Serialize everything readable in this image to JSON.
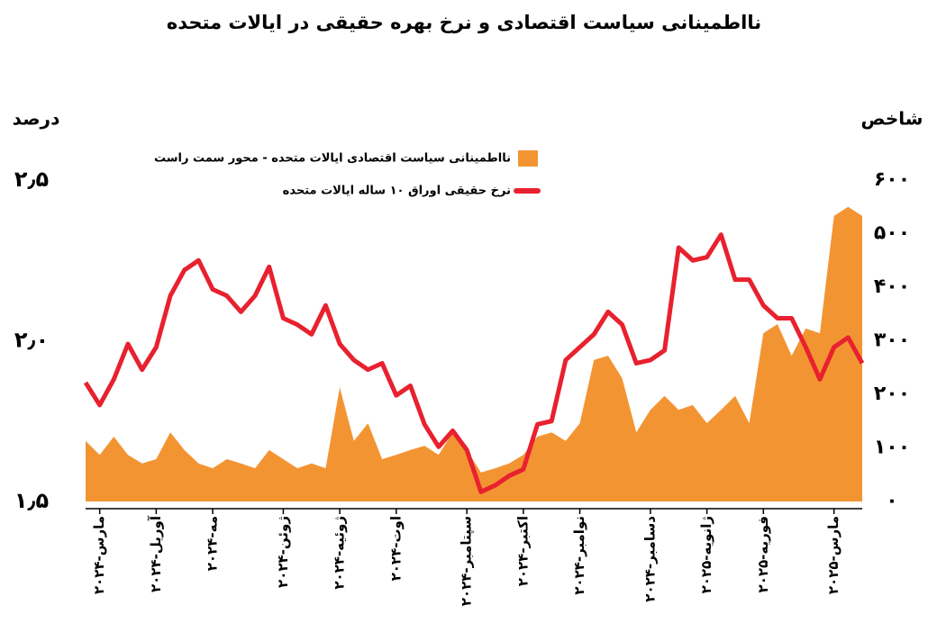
{
  "chart_data": {
    "type": "line",
    "title": "نااطمینانی سیاست اقتصادی و نرخ بهره حقیقی در ایالات متحده",
    "y_label": "درصد",
    "y2_label": "شاخص",
    "legend": "top right",
    "categories": [
      null,
      "مارس-۲۰۲۴",
      null,
      null,
      null,
      "آوریل-۲۰۲۴",
      null,
      null,
      null,
      "مه-۲۰۲۴",
      null,
      null,
      null,
      null,
      "ژوئن-۲۰۲۴",
      null,
      null,
      null,
      "ژوئیه-۲۰۲۴",
      null,
      null,
      null,
      "اوت-۲۰۲۴",
      null,
      null,
      null,
      null,
      "سپتامبر-۲۰۲۴",
      null,
      null,
      null,
      "اکتبر-۲۰۲۴",
      null,
      null,
      null,
      "نوامبر-۲۰۲۴",
      null,
      null,
      null,
      null,
      "دسامبر-۲۰۲۴",
      null,
      null,
      null,
      "ژانویه-۲۰۲۵",
      null,
      null,
      null,
      "فوریه-۲۰۲۵",
      null,
      null,
      null,
      null,
      "مارس-۲۰۲۵",
      null,
      null
    ],
    "ylim": [
      1.5,
      2.5
    ],
    "yticks": [
      {
        "value": 1.5,
        "label": "۱٫۵"
      },
      {
        "value": 2.0,
        "label": "۲٫۰"
      },
      {
        "value": 2.5,
        "label": "۲٫۵"
      }
    ],
    "y2lim": [
      0,
      600
    ],
    "y2ticks": [
      {
        "value": 0,
        "label": "۰"
      },
      {
        "value": 100,
        "label": "۱۰۰"
      },
      {
        "value": 200,
        "label": "۲۰۰"
      },
      {
        "value": 300,
        "label": "۳۰۰"
      },
      {
        "value": 400,
        "label": "۴۰۰"
      },
      {
        "value": 500,
        "label": "۵۰۰"
      },
      {
        "value": 600,
        "label": "۶۰۰"
      }
    ],
    "series": [
      {
        "name": "نااطمینانی سیاست اقتصادی ایالات متحده - محور  سمت راست",
        "type": "area",
        "axis": "y2",
        "color": "#f39433",
        "values": [
          113,
          87,
          121,
          87,
          71,
          79,
          129,
          96,
          71,
          62,
          79,
          71,
          62,
          96,
          79,
          62,
          71,
          62,
          213,
          113,
          146,
          79,
          87,
          96,
          104,
          87,
          129,
          96,
          54,
          62,
          71,
          87,
          121,
          129,
          113,
          146,
          264,
          272,
          230,
          129,
          171,
          197,
          171,
          180,
          146,
          171,
          197,
          146,
          314,
          331,
          272,
          323,
          314,
          533,
          550,
          533
        ]
      },
      {
        "name": "نرخ حقیقی  اوراق ۱۰ ساله ایالات متحده",
        "type": "line",
        "axis": "y",
        "color": "#e8212f",
        "values": [
          1.87,
          1.8,
          1.88,
          1.99,
          1.91,
          1.98,
          2.14,
          2.22,
          2.25,
          2.16,
          2.14,
          2.09,
          2.14,
          2.23,
          2.07,
          2.05,
          2.02,
          2.11,
          1.99,
          1.94,
          1.91,
          1.93,
          1.83,
          1.86,
          1.74,
          1.67,
          1.72,
          1.66,
          1.53,
          1.55,
          1.58,
          1.6,
          1.74,
          1.75,
          1.94,
          1.98,
          2.02,
          2.09,
          2.05,
          1.93,
          1.94,
          1.97,
          2.29,
          2.25,
          2.26,
          2.33,
          2.19,
          2.19,
          2.11,
          2.07,
          2.07,
          1.98,
          1.88,
          1.98,
          2.01,
          1.93
        ]
      }
    ]
  }
}
